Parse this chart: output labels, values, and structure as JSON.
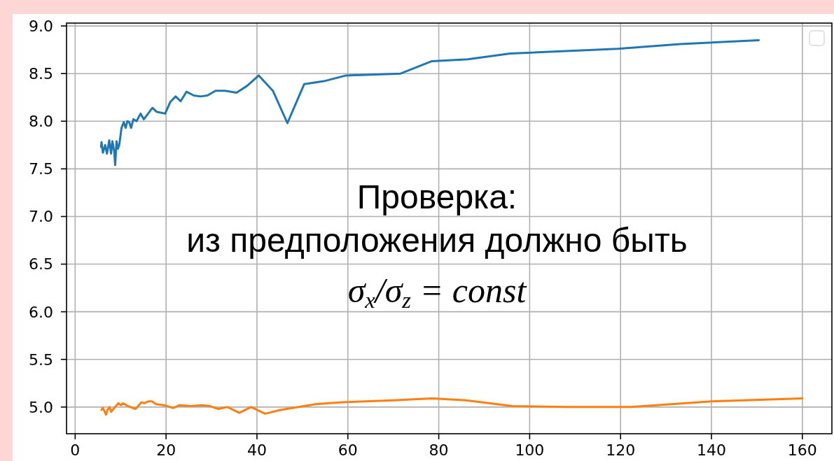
{
  "chart_data": {
    "type": "line",
    "annotations": [
      "Проверка:",
      "из предположения должно быть",
      "σ$_{x}$/σ$_{z}$ = const"
    ],
    "xlim": [
      -1.9,
      166.5
    ],
    "ylim": [
      4.72,
      9.03
    ],
    "xticks": [
      0,
      20,
      40,
      60,
      80,
      100,
      120,
      140,
      160
    ],
    "yticks": [
      {
        "value": 5,
        "label": "5.0"
      },
      {
        "value": 5.5,
        "label": "5.5"
      },
      {
        "value": 6,
        "label": "6.0"
      },
      {
        "value": 6.5,
        "label": "6.5"
      },
      {
        "value": 7,
        "label": "7.0"
      },
      {
        "value": 7.5,
        "label": "7.5"
      },
      {
        "value": 8,
        "label": "8.0"
      },
      {
        "value": 8.5,
        "label": "8.5"
      },
      {
        "value": 9,
        "label": "9.0"
      }
    ],
    "grid": true,
    "series": [
      {
        "color": "#1f77b4",
        "x": [
          5.7,
          5.8,
          6.1,
          6.6,
          7.0,
          7.5,
          7.9,
          8.2,
          8.6,
          8.8,
          9.1,
          9.4,
          9.7,
          10.2,
          10.7,
          11.1,
          11.5,
          11.9,
          12.3,
          12.8,
          13.5,
          14.4,
          15.1,
          17.0,
          17.9,
          19.8,
          20.9,
          22.1,
          23.2,
          24.5,
          26.1,
          27.6,
          29.1,
          30.9,
          33.0,
          35.5,
          37.8,
          40.4,
          43.5,
          46.7,
          50.4,
          54.7,
          59.6,
          71.6,
          78.5,
          86.4,
          95.7,
          119.4,
          133.1,
          150.4
        ],
        "values": [
          7.73,
          7.78,
          7.67,
          7.75,
          7.66,
          7.8,
          7.66,
          7.79,
          7.68,
          7.54,
          7.79,
          7.71,
          7.75,
          7.93,
          7.99,
          7.93,
          8.0,
          7.99,
          7.93,
          8.02,
          8.0,
          8.08,
          8.02,
          8.14,
          8.1,
          8.08,
          8.2,
          8.26,
          8.21,
          8.31,
          8.27,
          8.26,
          8.27,
          8.32,
          8.32,
          8.3,
          8.37,
          8.48,
          8.32,
          7.98,
          8.39,
          8.42,
          8.48,
          8.5,
          8.63,
          8.65,
          8.71,
          8.76,
          8.81,
          8.85
        ]
      },
      {
        "color": "#ff7f0e",
        "x": [
          5.8,
          6.1,
          6.5,
          6.8,
          7.1,
          7.6,
          7.9,
          8.6,
          9.5,
          10.1,
          10.5,
          11.6,
          13.3,
          14.6,
          15.2,
          16.2,
          16.9,
          17.8,
          19.5,
          21.6,
          23.0,
          25.5,
          27.8,
          29.6,
          31.5,
          33.5,
          36.1,
          38.7,
          41.8,
          45.2,
          52.9,
          58.8,
          70.0,
          78.6,
          86.0,
          96.2,
          108.5,
          122.3,
          140.0,
          160.0
        ],
        "values": [
          4.97,
          4.99,
          4.95,
          4.92,
          4.97,
          5.0,
          4.95,
          4.99,
          5.04,
          5.02,
          5.04,
          5.01,
          4.98,
          5.05,
          5.04,
          5.06,
          5.06,
          5.03,
          5.02,
          4.99,
          5.02,
          5.01,
          5.02,
          5.01,
          4.98,
          5.0,
          4.94,
          5.0,
          4.93,
          4.97,
          5.03,
          5.05,
          5.07,
          5.09,
          5.07,
          5.01,
          5.0,
          5.0,
          5.06,
          5.09
        ]
      }
    ]
  }
}
